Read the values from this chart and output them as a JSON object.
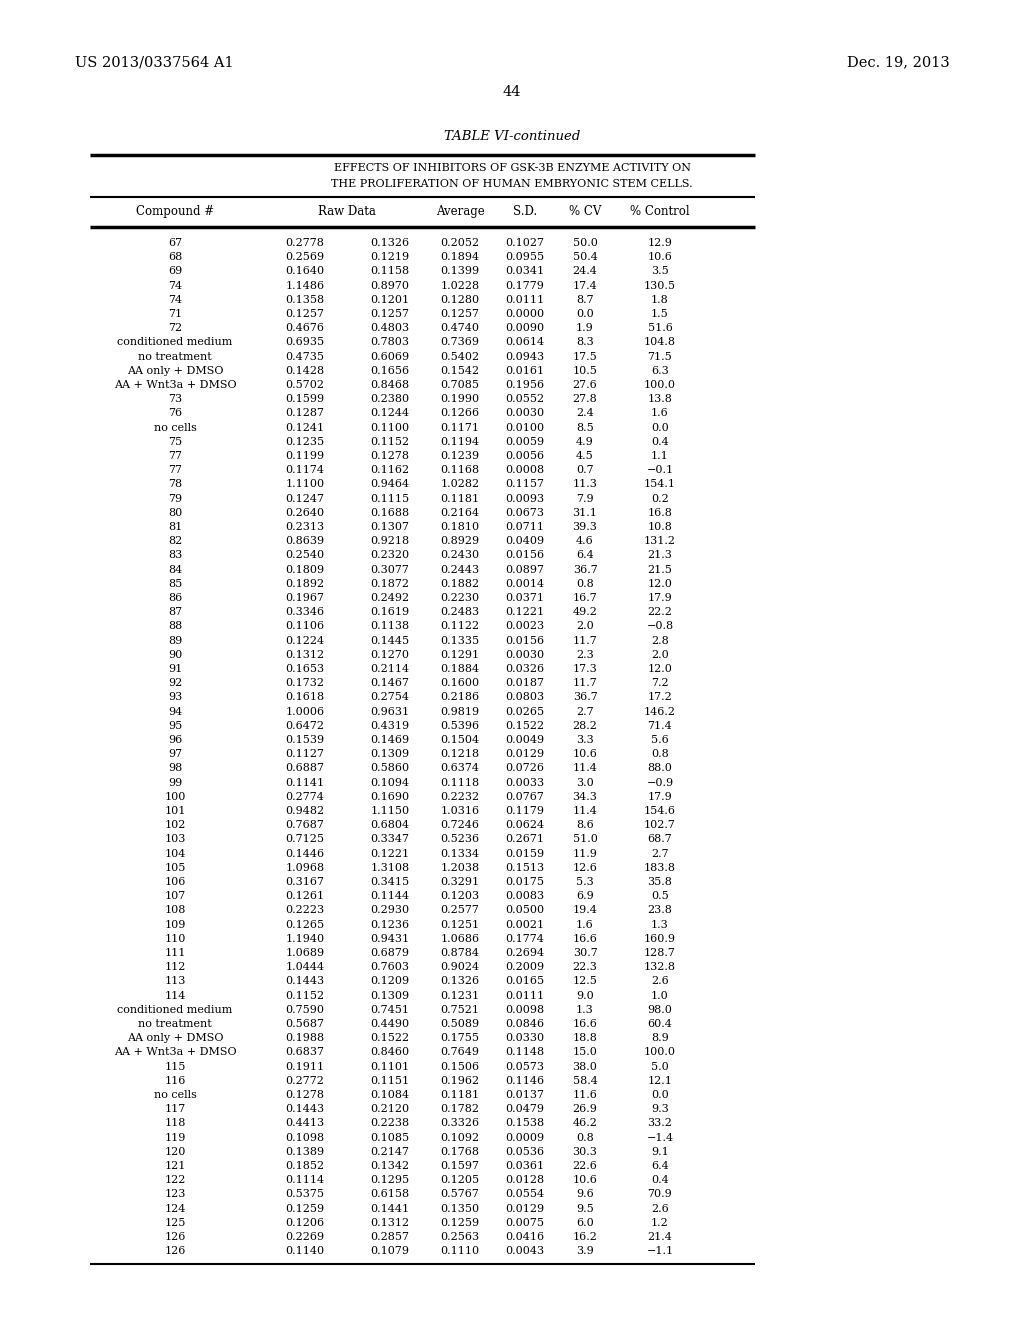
{
  "page_number": "44",
  "patent_left": "US 2013/0337564 A1",
  "patent_right": "Dec. 19, 2013",
  "table_title": "TABLE VI-continued",
  "table_header1": "EFFECTS OF INHIBITORS OF GSK-3B ENZYME ACTIVITY ON",
  "table_header2": "THE PROLIFERATION OF HUMAN EMBRYONIC STEM CELLS.",
  "rows": [
    [
      "67",
      "0.2778",
      "0.1326",
      "0.2052",
      "0.1027",
      "50.0",
      "12.9"
    ],
    [
      "68",
      "0.2569",
      "0.1219",
      "0.1894",
      "0.0955",
      "50.4",
      "10.6"
    ],
    [
      "69",
      "0.1640",
      "0.1158",
      "0.1399",
      "0.0341",
      "24.4",
      "3.5"
    ],
    [
      "74",
      "1.1486",
      "0.8970",
      "1.0228",
      "0.1779",
      "17.4",
      "130.5"
    ],
    [
      "74",
      "0.1358",
      "0.1201",
      "0.1280",
      "0.0111",
      "8.7",
      "1.8"
    ],
    [
      "71",
      "0.1257",
      "0.1257",
      "0.1257",
      "0.0000",
      "0.0",
      "1.5"
    ],
    [
      "72",
      "0.4676",
      "0.4803",
      "0.4740",
      "0.0090",
      "1.9",
      "51.6"
    ],
    [
      "conditioned medium",
      "0.6935",
      "0.7803",
      "0.7369",
      "0.0614",
      "8.3",
      "104.8"
    ],
    [
      "no treatment",
      "0.4735",
      "0.6069",
      "0.5402",
      "0.0943",
      "17.5",
      "71.5"
    ],
    [
      "AA only + DMSO",
      "0.1428",
      "0.1656",
      "0.1542",
      "0.0161",
      "10.5",
      "6.3"
    ],
    [
      "AA + Wnt3a + DMSO",
      "0.5702",
      "0.8468",
      "0.7085",
      "0.1956",
      "27.6",
      "100.0"
    ],
    [
      "73",
      "0.1599",
      "0.2380",
      "0.1990",
      "0.0552",
      "27.8",
      "13.8"
    ],
    [
      "76",
      "0.1287",
      "0.1244",
      "0.1266",
      "0.0030",
      "2.4",
      "1.6"
    ],
    [
      "no cells",
      "0.1241",
      "0.1100",
      "0.1171",
      "0.0100",
      "8.5",
      "0.0"
    ],
    [
      "75",
      "0.1235",
      "0.1152",
      "0.1194",
      "0.0059",
      "4.9",
      "0.4"
    ],
    [
      "77",
      "0.1199",
      "0.1278",
      "0.1239",
      "0.0056",
      "4.5",
      "1.1"
    ],
    [
      "77",
      "0.1174",
      "0.1162",
      "0.1168",
      "0.0008",
      "0.7",
      "−0.1"
    ],
    [
      "78",
      "1.1100",
      "0.9464",
      "1.0282",
      "0.1157",
      "11.3",
      "154.1"
    ],
    [
      "79",
      "0.1247",
      "0.1115",
      "0.1181",
      "0.0093",
      "7.9",
      "0.2"
    ],
    [
      "80",
      "0.2640",
      "0.1688",
      "0.2164",
      "0.0673",
      "31.1",
      "16.8"
    ],
    [
      "81",
      "0.2313",
      "0.1307",
      "0.1810",
      "0.0711",
      "39.3",
      "10.8"
    ],
    [
      "82",
      "0.8639",
      "0.9218",
      "0.8929",
      "0.0409",
      "4.6",
      "131.2"
    ],
    [
      "83",
      "0.2540",
      "0.2320",
      "0.2430",
      "0.0156",
      "6.4",
      "21.3"
    ],
    [
      "84",
      "0.1809",
      "0.3077",
      "0.2443",
      "0.0897",
      "36.7",
      "21.5"
    ],
    [
      "85",
      "0.1892",
      "0.1872",
      "0.1882",
      "0.0014",
      "0.8",
      "12.0"
    ],
    [
      "86",
      "0.1967",
      "0.2492",
      "0.2230",
      "0.0371",
      "16.7",
      "17.9"
    ],
    [
      "87",
      "0.3346",
      "0.1619",
      "0.2483",
      "0.1221",
      "49.2",
      "22.2"
    ],
    [
      "88",
      "0.1106",
      "0.1138",
      "0.1122",
      "0.0023",
      "2.0",
      "−0.8"
    ],
    [
      "89",
      "0.1224",
      "0.1445",
      "0.1335",
      "0.0156",
      "11.7",
      "2.8"
    ],
    [
      "90",
      "0.1312",
      "0.1270",
      "0.1291",
      "0.0030",
      "2.3",
      "2.0"
    ],
    [
      "91",
      "0.1653",
      "0.2114",
      "0.1884",
      "0.0326",
      "17.3",
      "12.0"
    ],
    [
      "92",
      "0.1732",
      "0.1467",
      "0.1600",
      "0.0187",
      "11.7",
      "7.2"
    ],
    [
      "93",
      "0.1618",
      "0.2754",
      "0.2186",
      "0.0803",
      "36.7",
      "17.2"
    ],
    [
      "94",
      "1.0006",
      "0.9631",
      "0.9819",
      "0.0265",
      "2.7",
      "146.2"
    ],
    [
      "95",
      "0.6472",
      "0.4319",
      "0.5396",
      "0.1522",
      "28.2",
      "71.4"
    ],
    [
      "96",
      "0.1539",
      "0.1469",
      "0.1504",
      "0.0049",
      "3.3",
      "5.6"
    ],
    [
      "97",
      "0.1127",
      "0.1309",
      "0.1218",
      "0.0129",
      "10.6",
      "0.8"
    ],
    [
      "98",
      "0.6887",
      "0.5860",
      "0.6374",
      "0.0726",
      "11.4",
      "88.0"
    ],
    [
      "99",
      "0.1141",
      "0.1094",
      "0.1118",
      "0.0033",
      "3.0",
      "−0.9"
    ],
    [
      "100",
      "0.2774",
      "0.1690",
      "0.2232",
      "0.0767",
      "34.3",
      "17.9"
    ],
    [
      "101",
      "0.9482",
      "1.1150",
      "1.0316",
      "0.1179",
      "11.4",
      "154.6"
    ],
    [
      "102",
      "0.7687",
      "0.6804",
      "0.7246",
      "0.0624",
      "8.6",
      "102.7"
    ],
    [
      "103",
      "0.7125",
      "0.3347",
      "0.5236",
      "0.2671",
      "51.0",
      "68.7"
    ],
    [
      "104",
      "0.1446",
      "0.1221",
      "0.1334",
      "0.0159",
      "11.9",
      "2.7"
    ],
    [
      "105",
      "1.0968",
      "1.3108",
      "1.2038",
      "0.1513",
      "12.6",
      "183.8"
    ],
    [
      "106",
      "0.3167",
      "0.3415",
      "0.3291",
      "0.0175",
      "5.3",
      "35.8"
    ],
    [
      "107",
      "0.1261",
      "0.1144",
      "0.1203",
      "0.0083",
      "6.9",
      "0.5"
    ],
    [
      "108",
      "0.2223",
      "0.2930",
      "0.2577",
      "0.0500",
      "19.4",
      "23.8"
    ],
    [
      "109",
      "0.1265",
      "0.1236",
      "0.1251",
      "0.0021",
      "1.6",
      "1.3"
    ],
    [
      "110",
      "1.1940",
      "0.9431",
      "1.0686",
      "0.1774",
      "16.6",
      "160.9"
    ],
    [
      "111",
      "1.0689",
      "0.6879",
      "0.8784",
      "0.2694",
      "30.7",
      "128.7"
    ],
    [
      "112",
      "1.0444",
      "0.7603",
      "0.9024",
      "0.2009",
      "22.3",
      "132.8"
    ],
    [
      "113",
      "0.1443",
      "0.1209",
      "0.1326",
      "0.0165",
      "12.5",
      "2.6"
    ],
    [
      "114",
      "0.1152",
      "0.1309",
      "0.1231",
      "0.0111",
      "9.0",
      "1.0"
    ],
    [
      "conditioned medium",
      "0.7590",
      "0.7451",
      "0.7521",
      "0.0098",
      "1.3",
      "98.0"
    ],
    [
      "no treatment",
      "0.5687",
      "0.4490",
      "0.5089",
      "0.0846",
      "16.6",
      "60.4"
    ],
    [
      "AA only + DMSO",
      "0.1988",
      "0.1522",
      "0.1755",
      "0.0330",
      "18.8",
      "8.9"
    ],
    [
      "AA + Wnt3a + DMSO",
      "0.6837",
      "0.8460",
      "0.7649",
      "0.1148",
      "15.0",
      "100.0"
    ],
    [
      "115",
      "0.1911",
      "0.1101",
      "0.1506",
      "0.0573",
      "38.0",
      "5.0"
    ],
    [
      "116",
      "0.2772",
      "0.1151",
      "0.1962",
      "0.1146",
      "58.4",
      "12.1"
    ],
    [
      "no cells",
      "0.1278",
      "0.1084",
      "0.1181",
      "0.0137",
      "11.6",
      "0.0"
    ],
    [
      "117",
      "0.1443",
      "0.2120",
      "0.1782",
      "0.0479",
      "26.9",
      "9.3"
    ],
    [
      "118",
      "0.4413",
      "0.2238",
      "0.3326",
      "0.1538",
      "46.2",
      "33.2"
    ],
    [
      "119",
      "0.1098",
      "0.1085",
      "0.1092",
      "0.0009",
      "0.8",
      "−1.4"
    ],
    [
      "120",
      "0.1389",
      "0.2147",
      "0.1768",
      "0.0536",
      "30.3",
      "9.1"
    ],
    [
      "121",
      "0.1852",
      "0.1342",
      "0.1597",
      "0.0361",
      "22.6",
      "6.4"
    ],
    [
      "122",
      "0.1114",
      "0.1295",
      "0.1205",
      "0.0128",
      "10.6",
      "0.4"
    ],
    [
      "123",
      "0.5375",
      "0.6158",
      "0.5767",
      "0.0554",
      "9.6",
      "70.9"
    ],
    [
      "124",
      "0.1259",
      "0.1441",
      "0.1350",
      "0.0129",
      "9.5",
      "2.6"
    ],
    [
      "125",
      "0.1206",
      "0.1312",
      "0.1259",
      "0.0075",
      "6.0",
      "1.2"
    ],
    [
      "126",
      "0.2269",
      "0.2857",
      "0.2563",
      "0.0416",
      "16.2",
      "21.4"
    ],
    [
      "126",
      "0.1140",
      "0.1079",
      "0.1110",
      "0.0043",
      "3.9",
      "−1.1"
    ]
  ]
}
